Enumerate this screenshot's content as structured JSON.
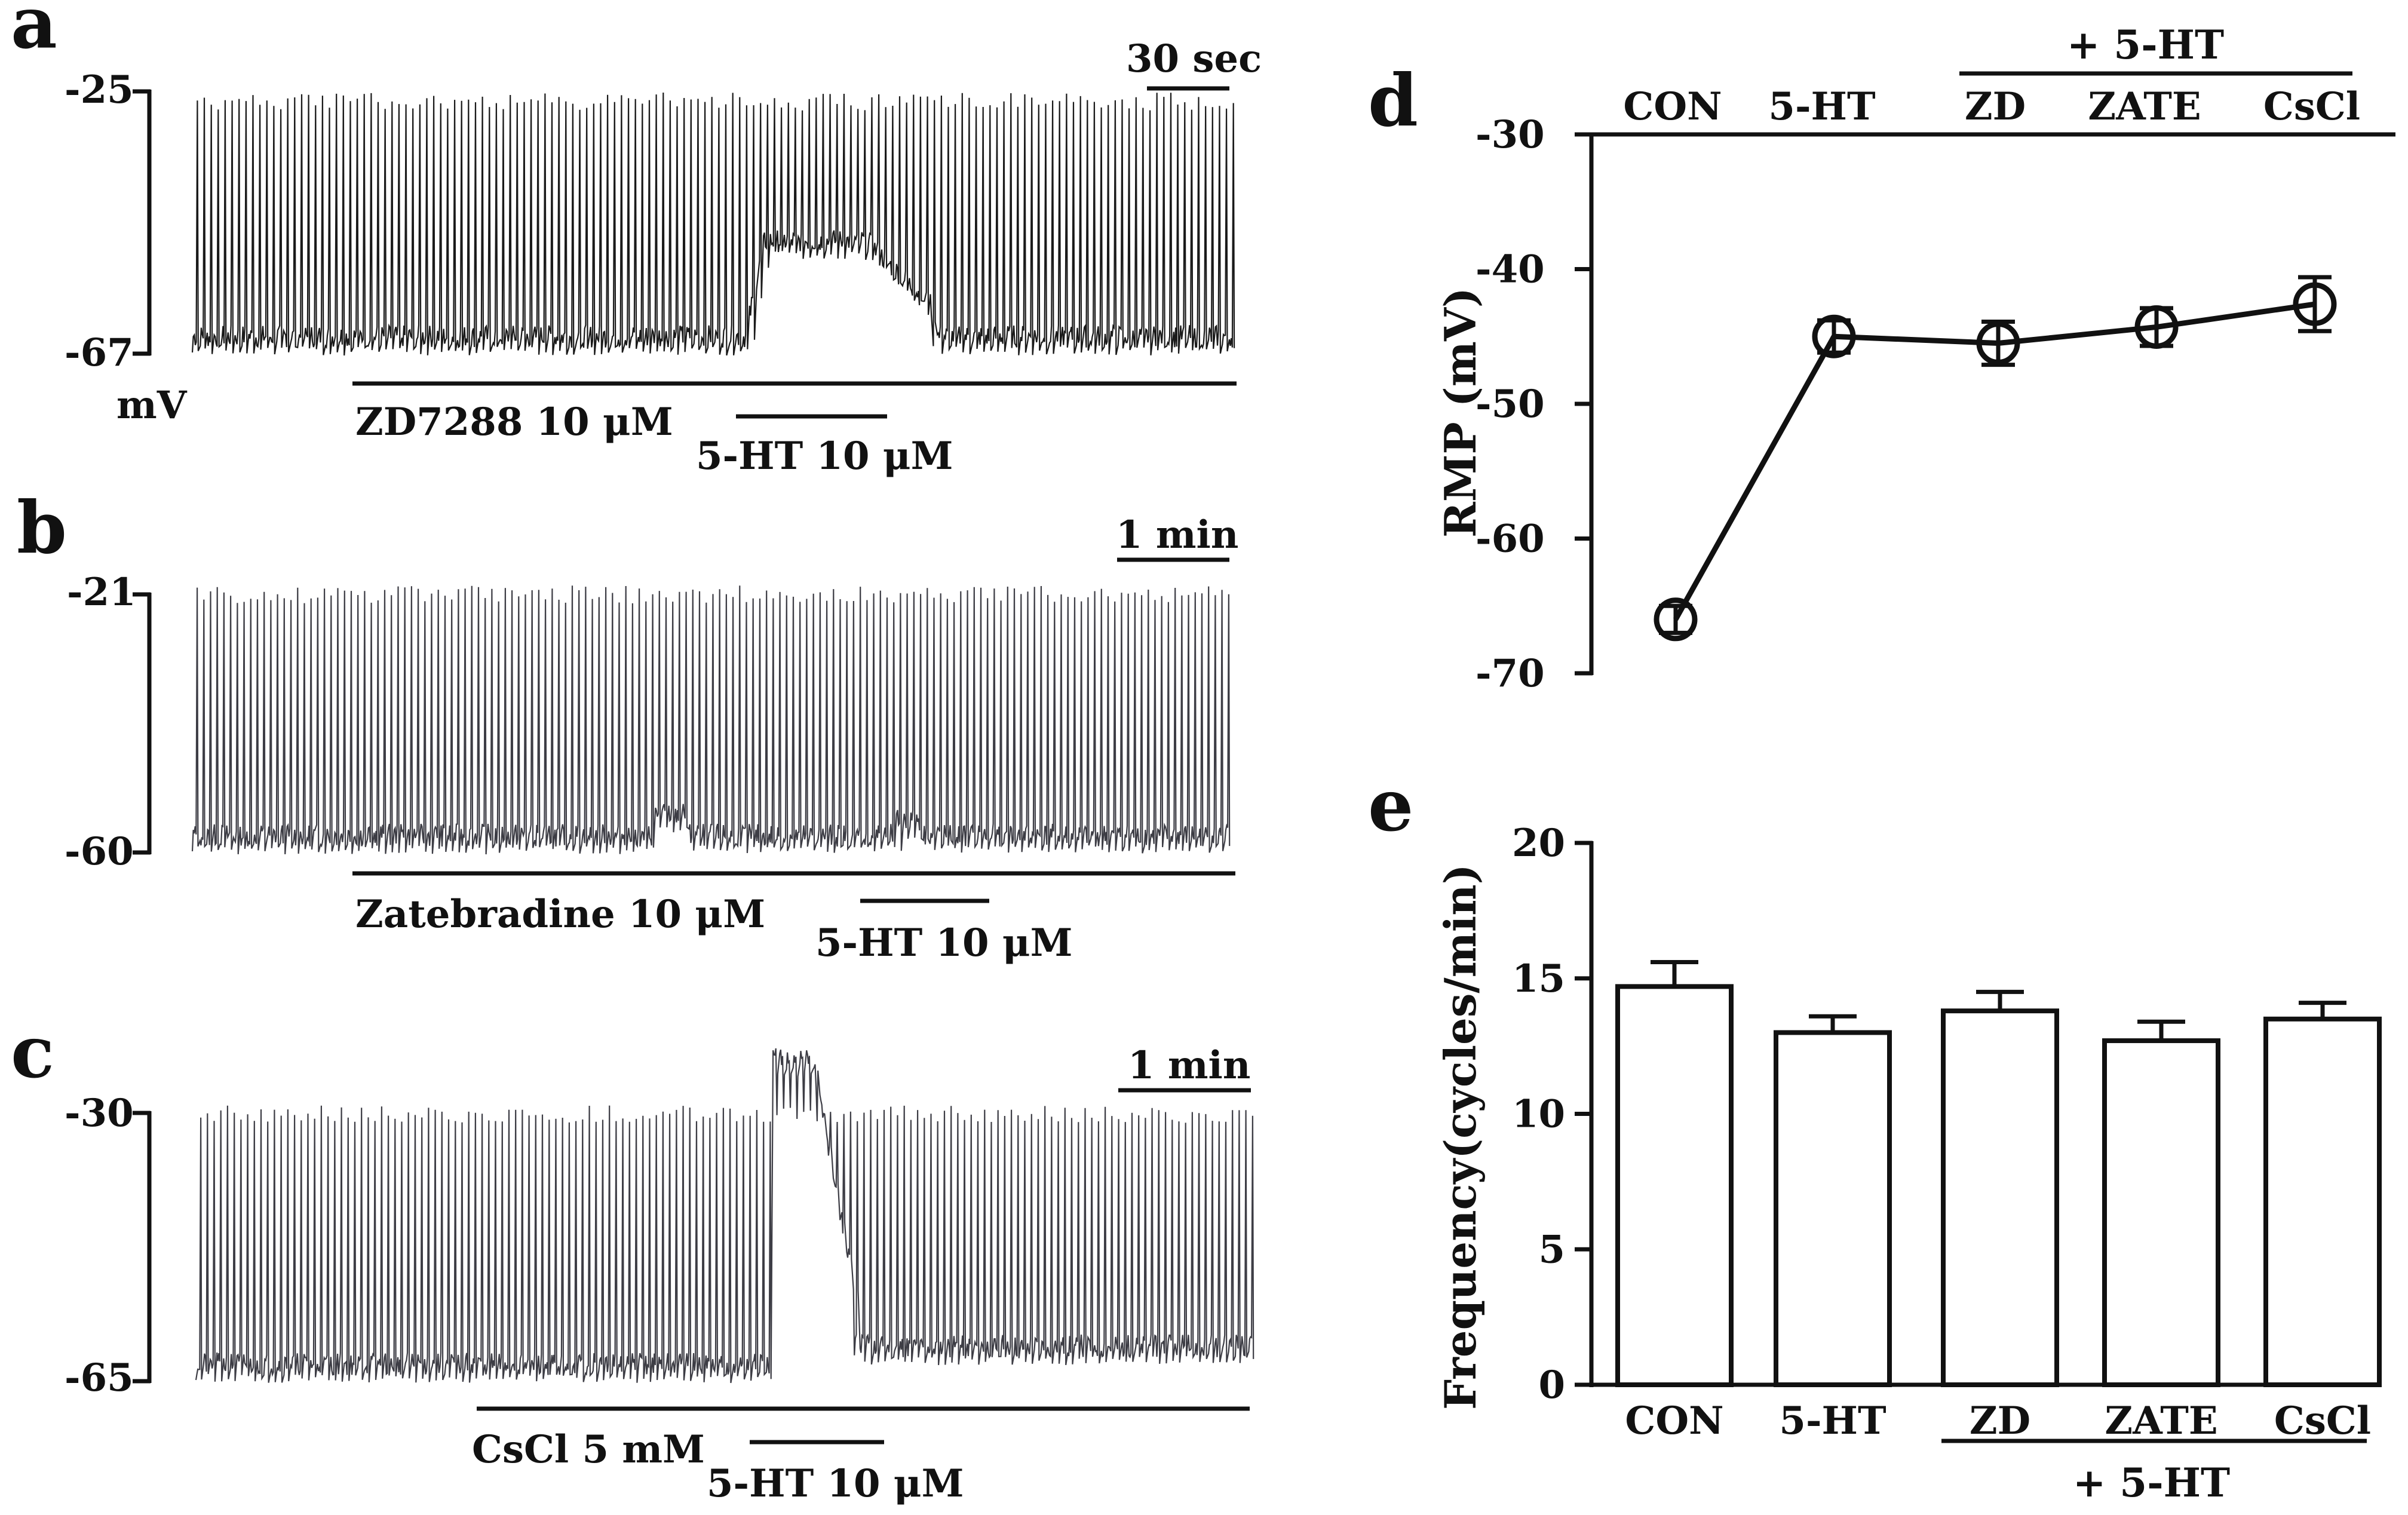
{
  "panels": {
    "a": {
      "letter": "a",
      "scale_label": "30 sec",
      "y_top_label": "-25",
      "y_bottom_label": "-67",
      "unit_label": "mV",
      "drug_label": "ZD7288  10 μM",
      "ht_label": "5-HT 10 μM",
      "y_range_mV": [
        -67,
        -25
      ]
    },
    "b": {
      "letter": "b",
      "scale_label": "1 min",
      "y_top_label": "-21",
      "y_bottom_label": "-60",
      "drug_label": "Zatebradine  10 μM",
      "ht_label": "5-HT 10 μM",
      "y_range_mV": [
        -60,
        -21
      ]
    },
    "c": {
      "letter": "c",
      "scale_label": "1 min",
      "y_top_label": "-30",
      "y_bottom_label": "-65",
      "drug_label": "CsCl  5 mM",
      "ht_label": "5-HT 10 μM",
      "y_range_mV": [
        -65,
        -30
      ]
    }
  },
  "chart_data": [
    {
      "panel": "d",
      "letter": "d",
      "type": "line",
      "title": "",
      "ylabel": "RMP (mV)",
      "categories": [
        "CON",
        "5-HT",
        "ZD",
        "ZATE",
        "CsCl"
      ],
      "values": [
        -66,
        -45,
        -45.5,
        -44.3,
        -42.6
      ],
      "errors": [
        1.0,
        1.2,
        1.6,
        1.4,
        2.0
      ],
      "ylim": [
        -70,
        -30
      ],
      "yticks": [
        "-30",
        "-40",
        "-50",
        "-60",
        "-70"
      ],
      "group_label": "+ 5-HT"
    },
    {
      "panel": "e",
      "letter": "e",
      "type": "bar",
      "title": "",
      "ylabel": "Frequency(cycles/min)",
      "categories": [
        "CON",
        "5-HT",
        "ZD",
        "ZATE",
        "CsCl"
      ],
      "values": [
        14.7,
        13.0,
        13.8,
        12.7,
        13.5
      ],
      "errors": [
        0.9,
        0.6,
        0.7,
        0.7,
        0.6
      ],
      "ylim": [
        0,
        20
      ],
      "yticks": [
        "0",
        "5",
        "10",
        "15",
        "20"
      ],
      "group_label": "+ 5-HT"
    }
  ]
}
